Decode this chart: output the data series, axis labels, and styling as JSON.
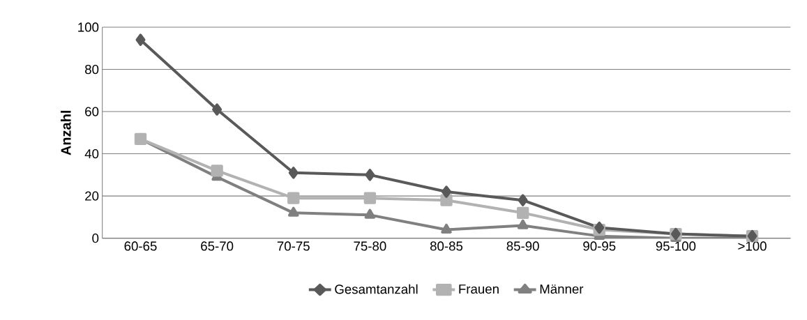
{
  "chart_data": {
    "type": "line",
    "ylabel": "Anzahl",
    "categories": [
      "60-65",
      "65-70",
      "70-75",
      "75-80",
      "80-85",
      "85-90",
      "90-95",
      "95-100",
      ">100"
    ],
    "series": [
      {
        "name": "Gesamtanzahl",
        "color": "#595959",
        "marker": "diamond",
        "values": [
          94,
          61,
          31,
          30,
          22,
          18,
          5,
          2,
          1
        ]
      },
      {
        "name": "Frauen",
        "color": "#b2b2b2",
        "marker": "square",
        "values": [
          47,
          32,
          19,
          19,
          18,
          12,
          4,
          2,
          1
        ]
      },
      {
        "name": "Männer",
        "color": "#808080",
        "marker": "triangle",
        "values": [
          47,
          29,
          12,
          11,
          4,
          6,
          1,
          0,
          0
        ]
      }
    ],
    "ylim": [
      0,
      100
    ],
    "yticks": [
      0,
      20,
      40,
      60,
      80,
      100
    ],
    "grid": "y",
    "legend": "bottom"
  }
}
